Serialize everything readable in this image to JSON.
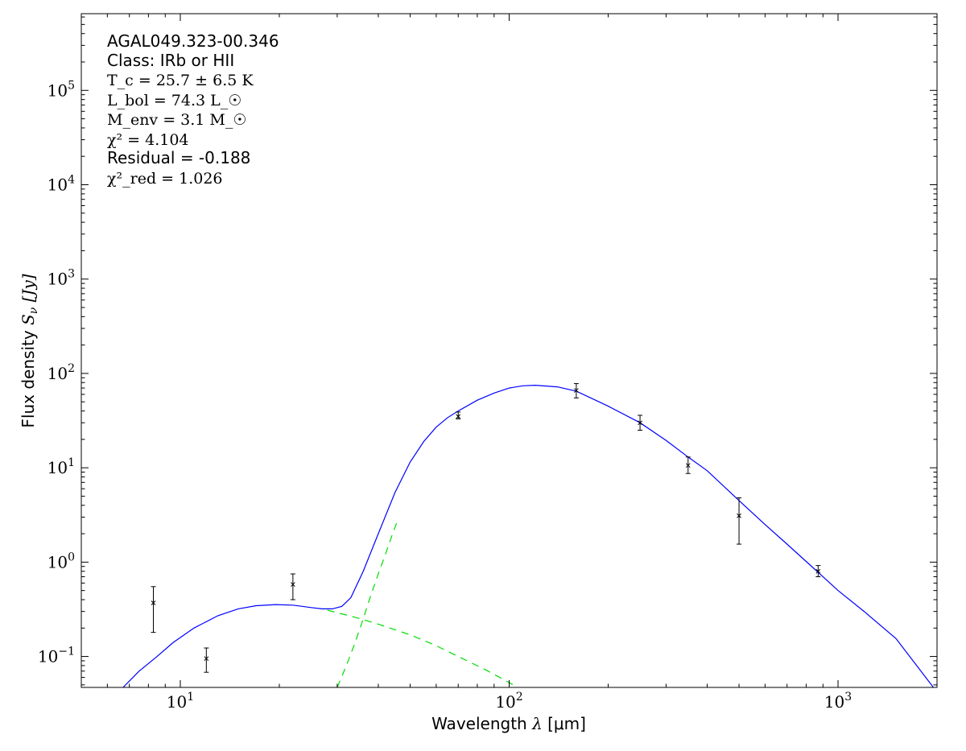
{
  "chart_data": {
    "type": "scatter",
    "xlabel_prefix": "Wavelength ",
    "xlabel_symbol": "λ",
    "xlabel_unit": " [μm]",
    "ylabel_prefix": "Flux density ",
    "ylabel_symbol": "S",
    "ylabel_sub": "ν",
    "ylabel_unit": " [Jy]",
    "xscale": "log",
    "yscale": "log",
    "xlim": [
      5,
      2000
    ],
    "ylim": [
      0.047,
      650000
    ],
    "x_ticks": [
      {
        "base": "10",
        "exp": "1",
        "value": 10
      },
      {
        "base": "10",
        "exp": "2",
        "value": 100
      },
      {
        "base": "10",
        "exp": "3",
        "value": 1000
      }
    ],
    "y_ticks": [
      {
        "base": "10",
        "exp": "−1",
        "value": 0.1
      },
      {
        "base": "10",
        "exp": "0",
        "value": 1
      },
      {
        "base": "10",
        "exp": "1",
        "value": 10
      },
      {
        "base": "10",
        "exp": "2",
        "value": 100
      },
      {
        "base": "10",
        "exp": "3",
        "value": 1000
      },
      {
        "base": "10",
        "exp": "4",
        "value": 10000
      },
      {
        "base": "10",
        "exp": "5",
        "value": 100000
      }
    ],
    "annotations": {
      "source": "AGAL049.323-00.346",
      "class_line": "Class: IRb or HII",
      "tc": "T_c = 25.7 ± 6.5 K",
      "lbol": "L_bol = 74.3 L_☉",
      "menv": "M_env = 3.1 M_☉",
      "chi2": "χ² = 4.104",
      "residual": "Residual = -0.188",
      "chi2red": "χ²_red = 1.026"
    },
    "series": [
      {
        "kind": "points",
        "color": "#000000",
        "x": [
          8.28,
          12,
          22,
          70,
          160,
          250,
          350,
          500,
          870
        ],
        "y": [
          0.37,
          0.095,
          0.58,
          35,
          66,
          30,
          10.6,
          3.1,
          0.8
        ],
        "y_low": [
          0.18,
          0.068,
          0.4,
          33,
          55,
          25,
          8.7,
          1.55,
          0.7
        ],
        "y_high": [
          0.55,
          0.123,
          0.75,
          39,
          78,
          36,
          13.0,
          4.8,
          0.92
        ]
      },
      {
        "kind": "line",
        "color": "#0000ff",
        "dashed": false,
        "x": [
          6.7,
          7.5,
          8.5,
          9.5,
          11,
          13,
          15,
          17,
          19.5,
          22,
          25,
          27,
          29,
          31,
          33,
          36,
          40,
          45,
          50,
          55,
          60,
          65,
          70,
          80,
          90,
          100,
          110,
          120,
          140,
          160,
          200,
          250,
          300,
          350,
          400,
          500,
          600,
          700,
          870,
          1000,
          1200,
          1500,
          1950
        ],
        "y": [
          0.047,
          0.07,
          0.1,
          0.14,
          0.2,
          0.27,
          0.32,
          0.345,
          0.355,
          0.35,
          0.33,
          0.32,
          0.32,
          0.34,
          0.42,
          0.8,
          2.0,
          5.5,
          11.5,
          19,
          27,
          34,
          40,
          52,
          62,
          70,
          74,
          75,
          72,
          65,
          45,
          30,
          19.5,
          13,
          9.3,
          4.5,
          2.5,
          1.55,
          0.78,
          0.5,
          0.3,
          0.155,
          0.047
        ]
      },
      {
        "kind": "line",
        "color": "#00dd00",
        "dashed": true,
        "x": [
          28,
          34,
          40,
          50,
          60,
          70,
          85,
          103
        ],
        "y": [
          0.31,
          0.26,
          0.22,
          0.17,
          0.13,
          0.1,
          0.072,
          0.05
        ]
      },
      {
        "kind": "line",
        "color": "#00dd00",
        "dashed": true,
        "x": [
          30,
          32,
          34,
          36,
          38,
          40,
          42,
          44,
          46
        ],
        "y": [
          0.047,
          0.08,
          0.14,
          0.25,
          0.45,
          0.75,
          1.2,
          1.9,
          2.9
        ]
      }
    ]
  }
}
